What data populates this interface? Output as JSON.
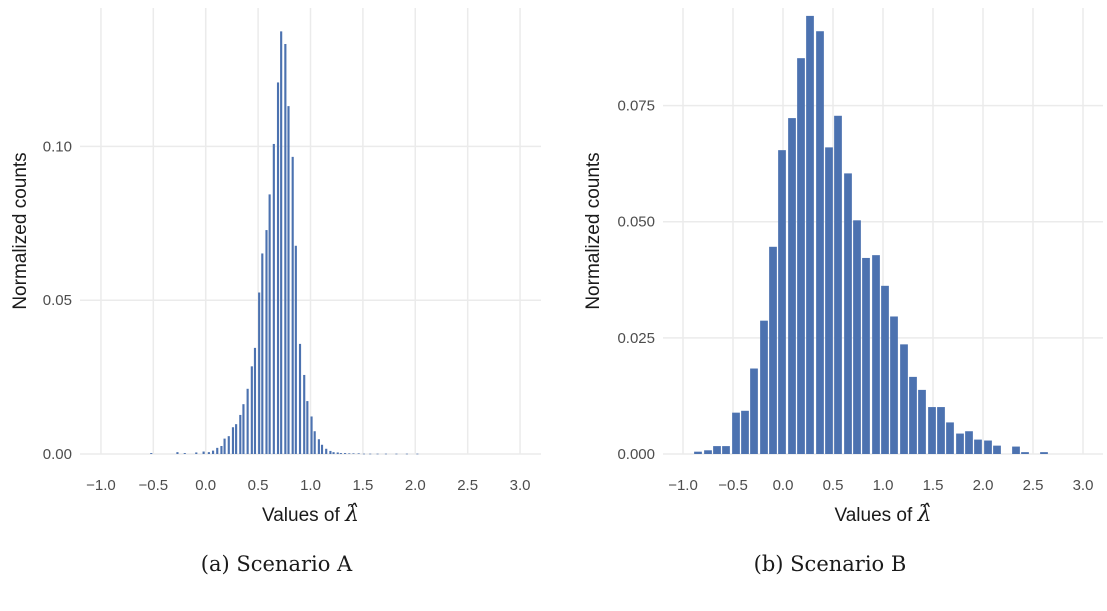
{
  "chart_data": [
    {
      "type": "bar",
      "caption": "(a) Scenario A",
      "xlabel_prefix": "Values of ",
      "xlabel_symbol": "λ̂",
      "ylabel": "Normalized counts",
      "xlim": [
        -1.2,
        3.2
      ],
      "ylim": [
        0,
        0.145
      ],
      "xticks": [
        -1.0,
        -0.5,
        0.0,
        0.5,
        1.0,
        1.5,
        2.0,
        2.5,
        3.0
      ],
      "xtick_labels": [
        "−1.0",
        "−0.5",
        "0.0",
        "0.5",
        "1.0",
        "1.5",
        "2.0",
        "2.5",
        "3.0"
      ],
      "yticks": [
        0.0,
        0.05,
        0.1
      ],
      "ytick_labels": [
        "0.00",
        "0.05",
        "0.10"
      ],
      "grid": true,
      "color": "#4c72b0",
      "bin_width": 0.0357,
      "x": [
        -0.52,
        -0.27,
        -0.2,
        -0.09,
        -0.02,
        0.03,
        0.07,
        0.11,
        0.15,
        0.18,
        0.22,
        0.26,
        0.29,
        0.33,
        0.36,
        0.4,
        0.44,
        0.47,
        0.51,
        0.54,
        0.58,
        0.61,
        0.65,
        0.69,
        0.72,
        0.76,
        0.79,
        0.83,
        0.86,
        0.9,
        0.94,
        0.97,
        1.01,
        1.04,
        1.08,
        1.11,
        1.15,
        1.19,
        1.22,
        1.26,
        1.29,
        1.33,
        1.37,
        1.41,
        1.46,
        1.51,
        1.57,
        1.64,
        1.72,
        1.82,
        1.92,
        2.02
      ],
      "values": [
        0.0003,
        0.0006,
        0.0003,
        0.0005,
        0.0008,
        0.0006,
        0.0011,
        0.002,
        0.0026,
        0.005,
        0.0058,
        0.0087,
        0.0097,
        0.0127,
        0.0162,
        0.0212,
        0.0285,
        0.0345,
        0.0525,
        0.0652,
        0.0728,
        0.0844,
        0.1008,
        0.1208,
        0.1374,
        0.1333,
        0.1131,
        0.0966,
        0.0677,
        0.0358,
        0.0257,
        0.0172,
        0.0122,
        0.0074,
        0.0048,
        0.003,
        0.0017,
        0.001,
        0.0006,
        0.0005,
        0.0003,
        0.0003,
        0.0002,
        0.0002,
        0.0002,
        0.0001,
        0.0001,
        0.0001,
        0.0001,
        0.0001,
        0.0001,
        0.0001
      ]
    },
    {
      "type": "bar",
      "caption": "(b) Scenario B",
      "xlabel_prefix": "Values of ",
      "xlabel_symbol": "λ̂",
      "ylabel": "Normalized counts",
      "xlim": [
        -1.2,
        3.2
      ],
      "ylim": [
        0,
        0.096
      ],
      "xticks": [
        -1.0,
        -0.5,
        0.0,
        0.5,
        1.0,
        1.5,
        2.0,
        2.5,
        3.0
      ],
      "xtick_labels": [
        "−1.0",
        "−0.5",
        "0.0",
        "0.5",
        "1.0",
        "1.5",
        "2.0",
        "2.5",
        "3.0"
      ],
      "yticks": [
        0.0,
        0.025,
        0.05,
        0.075
      ],
      "ytick_labels": [
        "0.000",
        "0.025",
        "0.050",
        "0.075"
      ],
      "grid": true,
      "color": "#4c72b0",
      "bin_width": 0.0934,
      "x": [
        -0.85,
        -0.75,
        -0.66,
        -0.57,
        -0.47,
        -0.38,
        -0.29,
        -0.19,
        -0.1,
        -0.01,
        0.09,
        0.18,
        0.27,
        0.37,
        0.46,
        0.55,
        0.65,
        0.74,
        0.83,
        0.93,
        1.02,
        1.11,
        1.21,
        1.3,
        1.39,
        1.49,
        1.58,
        1.67,
        1.77,
        1.86,
        1.95,
        2.05,
        2.14,
        2.33,
        2.42,
        2.61
      ],
      "values": [
        0.0005,
        0.0008,
        0.0017,
        0.0017,
        0.0089,
        0.0093,
        0.0184,
        0.0287,
        0.0446,
        0.0654,
        0.0723,
        0.0852,
        0.0943,
        0.091,
        0.066,
        0.0728,
        0.0604,
        0.0503,
        0.0422,
        0.0428,
        0.0362,
        0.0296,
        0.0236,
        0.0166,
        0.0138,
        0.0101,
        0.0101,
        0.0068,
        0.0044,
        0.0049,
        0.0031,
        0.0029,
        0.0018,
        0.0016,
        0.0004,
        0.0004
      ]
    }
  ]
}
